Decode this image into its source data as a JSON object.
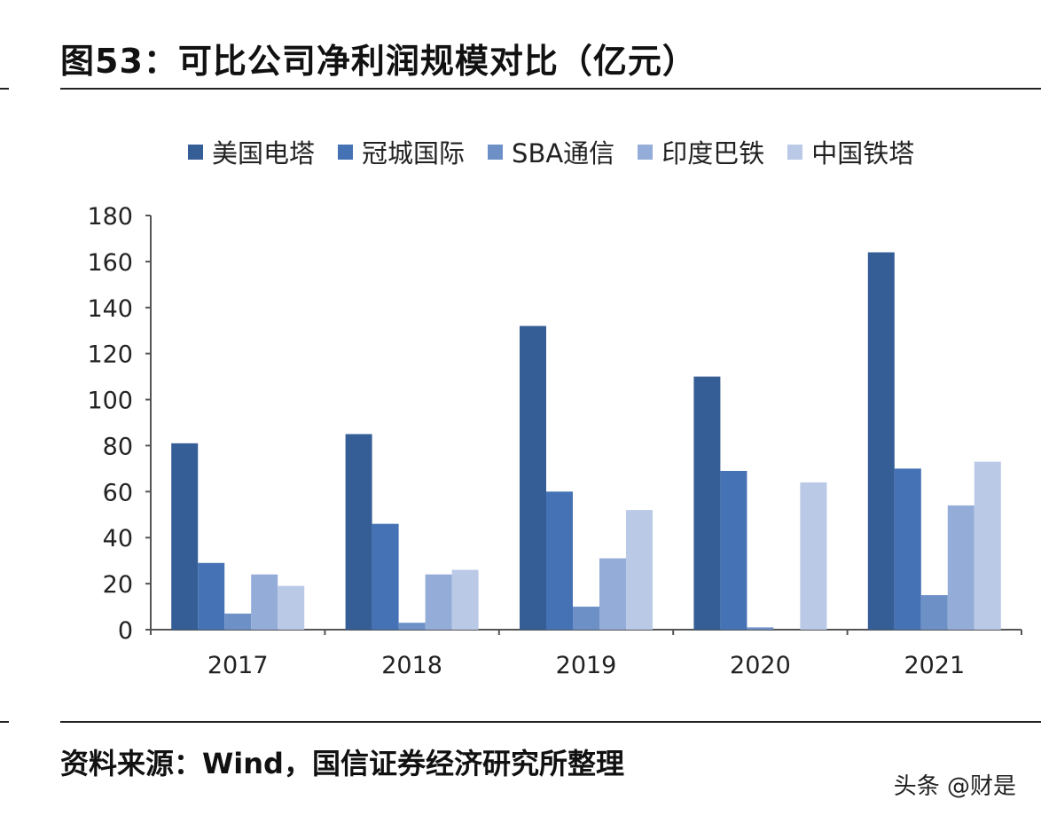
{
  "figure": {
    "title": "图53：可比公司净利润规模对比（亿元）",
    "source": "资料来源：Wind，国信证券经济研究所整理",
    "watermark": "头条 @财是"
  },
  "chart_data": {
    "type": "bar",
    "title": "",
    "xlabel": "",
    "ylabel": "",
    "categories": [
      "2017",
      "2018",
      "2019",
      "2020",
      "2021"
    ],
    "ylim": [
      0,
      180
    ],
    "yticks": [
      0,
      20,
      40,
      60,
      80,
      100,
      120,
      140,
      160,
      180
    ],
    "grid": false,
    "legend_position": "top",
    "series": [
      {
        "name": "美国电塔",
        "color": "#355e96",
        "values": [
          81,
          85,
          132,
          110,
          164
        ]
      },
      {
        "name": "冠城国际",
        "color": "#4472b4",
        "values": [
          29,
          46,
          60,
          69,
          70
        ]
      },
      {
        "name": "SBA通信",
        "color": "#6d90c7",
        "values": [
          7,
          3,
          10,
          1,
          15
        ]
      },
      {
        "name": "印度巴铁",
        "color": "#93acd8",
        "values": [
          24,
          24,
          31,
          null,
          54
        ]
      },
      {
        "name": "中国铁塔",
        "color": "#b9c9e6",
        "values": [
          19,
          26,
          52,
          64,
          73
        ]
      }
    ]
  }
}
